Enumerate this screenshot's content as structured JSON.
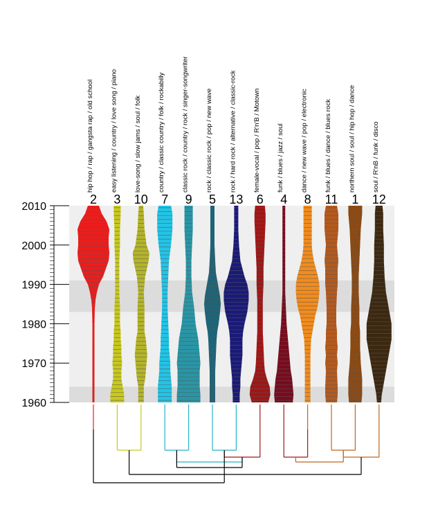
{
  "chart_data": {
    "type": "violin",
    "title": "",
    "xlabel": "",
    "ylabel": "",
    "ylim": [
      1960,
      2010
    ],
    "y_ticks": [
      1960,
      1970,
      1980,
      1990,
      2000,
      2010
    ],
    "highlight_bands": [
      [
        1983,
        1991
      ],
      [
        1960,
        1964
      ]
    ],
    "background_color": "#efefef",
    "band_color": "#dcdcdc",
    "series": [
      {
        "label": "2",
        "tags": "hip hop / rap / gangsta rap / old school",
        "color": "#ee1c1c",
        "profile": [
          [
            1960,
            1.5
          ],
          [
            1970,
            1.5
          ],
          [
            1975,
            1.5
          ],
          [
            1980,
            1.5
          ],
          [
            1984,
            2
          ],
          [
            1986,
            3
          ],
          [
            1988,
            5
          ],
          [
            1990,
            8
          ],
          [
            1992,
            14
          ],
          [
            1994,
            18
          ],
          [
            1996,
            22
          ],
          [
            1998,
            23
          ],
          [
            2000,
            22
          ],
          [
            2002,
            22
          ],
          [
            2004,
            23
          ],
          [
            2006,
            19
          ],
          [
            2008,
            12
          ],
          [
            2010,
            8
          ]
        ]
      },
      {
        "label": "3",
        "tags": "easy listening / country / love song / piano",
        "color": "#c8c81e",
        "profile": [
          [
            1960,
            10
          ],
          [
            1962,
            10
          ],
          [
            1964,
            8
          ],
          [
            1966,
            6
          ],
          [
            1968,
            6
          ],
          [
            1970,
            7
          ],
          [
            1972,
            6
          ],
          [
            1974,
            6
          ],
          [
            1976,
            5
          ],
          [
            1978,
            5
          ],
          [
            1980,
            4
          ],
          [
            1984,
            4
          ],
          [
            1988,
            3
          ],
          [
            1992,
            3
          ],
          [
            1996,
            3
          ],
          [
            2000,
            4
          ],
          [
            2004,
            4
          ],
          [
            2008,
            5
          ],
          [
            2010,
            5
          ]
        ]
      },
      {
        "label": "10",
        "tags": "love-song / slow jams / soul / folk",
        "color": "#b4b42a",
        "profile": [
          [
            1960,
            4
          ],
          [
            1964,
            4
          ],
          [
            1966,
            6
          ],
          [
            1970,
            8
          ],
          [
            1972,
            9
          ],
          [
            1974,
            8
          ],
          [
            1976,
            7
          ],
          [
            1978,
            5
          ],
          [
            1980,
            5
          ],
          [
            1984,
            5
          ],
          [
            1988,
            4
          ],
          [
            1992,
            6
          ],
          [
            1996,
            11
          ],
          [
            1998,
            12
          ],
          [
            2000,
            8
          ],
          [
            2004,
            5
          ],
          [
            2008,
            4
          ],
          [
            2010,
            3
          ]
        ]
      },
      {
        "label": "7",
        "tags": "country / classic country / folk / rockabilly",
        "color": "#22c4e6",
        "profile": [
          [
            1960,
            10
          ],
          [
            1962,
            10
          ],
          [
            1964,
            10
          ],
          [
            1966,
            9
          ],
          [
            1968,
            8
          ],
          [
            1970,
            8
          ],
          [
            1972,
            7
          ],
          [
            1974,
            6
          ],
          [
            1976,
            6
          ],
          [
            1980,
            5
          ],
          [
            1984,
            4
          ],
          [
            1988,
            4
          ],
          [
            1992,
            5
          ],
          [
            1996,
            6
          ],
          [
            2000,
            9
          ],
          [
            2004,
            11
          ],
          [
            2008,
            11
          ],
          [
            2010,
            9
          ]
        ]
      },
      {
        "label": "9",
        "tags": "classic rock / country / rock / singer-songwriter",
        "color": "#2896a6",
        "profile": [
          [
            1960,
            17
          ],
          [
            1962,
            17
          ],
          [
            1964,
            16
          ],
          [
            1966,
            16
          ],
          [
            1968,
            16
          ],
          [
            1970,
            17
          ],
          [
            1972,
            16
          ],
          [
            1974,
            15
          ],
          [
            1976,
            14
          ],
          [
            1978,
            12
          ],
          [
            1980,
            10
          ],
          [
            1984,
            8
          ],
          [
            1988,
            5
          ],
          [
            1992,
            4
          ],
          [
            1996,
            4
          ],
          [
            2000,
            5
          ],
          [
            2004,
            6
          ],
          [
            2008,
            6
          ],
          [
            2010,
            6
          ]
        ]
      },
      {
        "label": "5",
        "tags": "rock / classic rock / pop / new wave",
        "color": "#1e6478",
        "profile": [
          [
            1960,
            4
          ],
          [
            1964,
            4
          ],
          [
            1968,
            4
          ],
          [
            1972,
            5
          ],
          [
            1976,
            6
          ],
          [
            1978,
            7
          ],
          [
            1980,
            9
          ],
          [
            1983,
            11
          ],
          [
            1985,
            12
          ],
          [
            1987,
            11
          ],
          [
            1990,
            8
          ],
          [
            1993,
            5
          ],
          [
            1996,
            4
          ],
          [
            2000,
            3
          ],
          [
            2004,
            3
          ],
          [
            2008,
            3
          ],
          [
            2010,
            3
          ]
        ]
      },
      {
        "label": "13",
        "tags": "rock / hard rock / alternative / classic-rock",
        "color": "#1a1a78",
        "profile": [
          [
            1960,
            5
          ],
          [
            1962,
            5
          ],
          [
            1964,
            6
          ],
          [
            1966,
            6
          ],
          [
            1970,
            8
          ],
          [
            1972,
            9
          ],
          [
            1976,
            9
          ],
          [
            1978,
            10
          ],
          [
            1980,
            12
          ],
          [
            1983,
            16
          ],
          [
            1986,
            18
          ],
          [
            1988,
            18
          ],
          [
            1990,
            16
          ],
          [
            1992,
            12
          ],
          [
            1994,
            9
          ],
          [
            1996,
            6
          ],
          [
            1998,
            5
          ],
          [
            2000,
            4
          ],
          [
            2004,
            3
          ],
          [
            2008,
            3
          ],
          [
            2010,
            3
          ]
        ]
      },
      {
        "label": "6",
        "tags": "female-vocal / pop / R'n'B / Motown",
        "color": "#a01616",
        "profile": [
          [
            1960,
            12
          ],
          [
            1962,
            15
          ],
          [
            1964,
            14
          ],
          [
            1966,
            10
          ],
          [
            1968,
            7
          ],
          [
            1970,
            6
          ],
          [
            1974,
            5
          ],
          [
            1978,
            4
          ],
          [
            1982,
            4
          ],
          [
            1986,
            4
          ],
          [
            1990,
            5
          ],
          [
            1994,
            5
          ],
          [
            1998,
            6
          ],
          [
            2002,
            7
          ],
          [
            2006,
            8
          ],
          [
            2008,
            8
          ],
          [
            2010,
            7
          ]
        ]
      },
      {
        "label": "4",
        "tags": "funk / blues / jazz / soul",
        "color": "#780c1e",
        "profile": [
          [
            1960,
            13
          ],
          [
            1962,
            14
          ],
          [
            1964,
            13
          ],
          [
            1966,
            12
          ],
          [
            1968,
            10
          ],
          [
            1970,
            9
          ],
          [
            1972,
            8
          ],
          [
            1974,
            7
          ],
          [
            1976,
            6
          ],
          [
            1978,
            5
          ],
          [
            1980,
            4
          ],
          [
            1984,
            3
          ],
          [
            1988,
            2
          ],
          [
            1992,
            2
          ],
          [
            1996,
            2
          ],
          [
            2000,
            2
          ],
          [
            2004,
            2
          ],
          [
            2008,
            2
          ],
          [
            2010,
            2
          ]
        ]
      },
      {
        "label": "8",
        "tags": "dance / new wave / pop / electronic",
        "color": "#f08c1e",
        "profile": [
          [
            1960,
            4
          ],
          [
            1964,
            4
          ],
          [
            1968,
            4
          ],
          [
            1972,
            4
          ],
          [
            1976,
            5
          ],
          [
            1978,
            7
          ],
          [
            1980,
            9
          ],
          [
            1982,
            11
          ],
          [
            1984,
            14
          ],
          [
            1986,
            16
          ],
          [
            1988,
            17
          ],
          [
            1990,
            17
          ],
          [
            1992,
            15
          ],
          [
            1994,
            12
          ],
          [
            1996,
            9
          ],
          [
            1998,
            7
          ],
          [
            2000,
            6
          ],
          [
            2004,
            6
          ],
          [
            2008,
            6
          ],
          [
            2010,
            6
          ]
        ]
      },
      {
        "label": "11",
        "tags": "funk / blues / dance / blues rock",
        "color": "#b45a1e",
        "profile": [
          [
            1960,
            8
          ],
          [
            1962,
            9
          ],
          [
            1964,
            9
          ],
          [
            1968,
            8
          ],
          [
            1970,
            9
          ],
          [
            1972,
            8
          ],
          [
            1974,
            9
          ],
          [
            1976,
            8
          ],
          [
            1978,
            8
          ],
          [
            1980,
            7
          ],
          [
            1984,
            7
          ],
          [
            1988,
            8
          ],
          [
            1990,
            9
          ],
          [
            1992,
            9
          ],
          [
            1994,
            9
          ],
          [
            1996,
            10
          ],
          [
            1998,
            9
          ],
          [
            2000,
            8
          ],
          [
            2004,
            10
          ],
          [
            2008,
            10
          ],
          [
            2010,
            8
          ]
        ]
      },
      {
        "label": "1",
        "tags": "northern soul / soul / hip hop / dance",
        "color": "#8c4a14",
        "profile": [
          [
            1960,
            9
          ],
          [
            1962,
            10
          ],
          [
            1964,
            10
          ],
          [
            1966,
            10
          ],
          [
            1968,
            9
          ],
          [
            1970,
            8
          ],
          [
            1974,
            7
          ],
          [
            1978,
            7
          ],
          [
            1980,
            6
          ],
          [
            1984,
            6
          ],
          [
            1988,
            5
          ],
          [
            1992,
            5
          ],
          [
            1996,
            6
          ],
          [
            2000,
            7
          ],
          [
            2004,
            8
          ],
          [
            2006,
            9
          ],
          [
            2008,
            10
          ],
          [
            2010,
            10
          ]
        ]
      },
      {
        "label": "12",
        "tags": "soul / R'nB / funk / disco",
        "color": "#3c2810",
        "profile": [
          [
            1960,
            3
          ],
          [
            1962,
            4
          ],
          [
            1964,
            6
          ],
          [
            1966,
            8
          ],
          [
            1968,
            10
          ],
          [
            1970,
            12
          ],
          [
            1972,
            14
          ],
          [
            1974,
            16
          ],
          [
            1976,
            18
          ],
          [
            1978,
            18
          ],
          [
            1980,
            18
          ],
          [
            1982,
            16
          ],
          [
            1984,
            14
          ],
          [
            1986,
            12
          ],
          [
            1988,
            10
          ],
          [
            1990,
            9
          ],
          [
            1992,
            8
          ],
          [
            1996,
            7
          ],
          [
            2000,
            7
          ],
          [
            2004,
            6
          ],
          [
            2008,
            6
          ],
          [
            2010,
            5
          ]
        ]
      }
    ],
    "dendrogram": {
      "links": [
        {
          "a": 1,
          "b": 2,
          "level": 1,
          "color": "#c8c81e"
        },
        {
          "a": 3,
          "b": 4,
          "level": 1,
          "color": "#22b4c8"
        },
        {
          "a": 10,
          "b": 11,
          "level": 1,
          "color": "#c0641e"
        },
        {
          "a": 5,
          "b": 6,
          "level": 1,
          "color": "#22b4c8"
        },
        {
          "a": 8,
          "b": 9,
          "level": 2,
          "color": "#a01616"
        },
        {
          "a": 9,
          "b": 10,
          "level": 3,
          "color": "#c0641e"
        },
        {
          "a": 11,
          "b": 12,
          "level": 2,
          "color": "#c0641e"
        },
        {
          "a": 6,
          "b": 7,
          "level": 2,
          "color": "#a01616"
        },
        {
          "a": 3,
          "b": 6,
          "level": 3,
          "color": "#22b4c8"
        },
        {
          "a": 4,
          "b": 7,
          "level": 4,
          "color": "#000000"
        },
        {
          "a": 1,
          "b": 11,
          "level": 5,
          "color": "#000000"
        },
        {
          "a": 0,
          "b": 5,
          "level": 6,
          "color": "#000000"
        }
      ],
      "leaf_colors": [
        "#ee1c1c",
        "#c8c81e",
        "#c8c81e",
        "#22b4c8",
        "#22b4c8",
        "#22b4c8",
        "#22b4c8",
        "#a01616",
        "#a01616",
        "#c0641e",
        "#c0641e",
        "#c0641e",
        "#c0641e"
      ]
    }
  }
}
